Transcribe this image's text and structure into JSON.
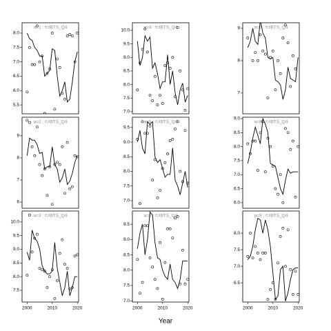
{
  "xlabel": "Year",
  "chart_data": [
    {
      "type": "line",
      "title": "a=1 : f=IBTS_Q4",
      "x": [
        2000,
        2001,
        2002,
        2003,
        2004,
        2005,
        2006,
        2007,
        2008,
        2009,
        2010,
        2011,
        2012,
        2013,
        2014,
        2015,
        2016,
        2017,
        2018,
        2019,
        2020
      ],
      "xlim": [
        1998,
        2020.5
      ],
      "ylim": [
        5.19,
        8.36
      ],
      "yticks": [
        5.5,
        {
          "value": 6,
          "label": "6.0"
        },
        6.5,
        {
          "value": 7,
          "label": "7.0"
        },
        7.5,
        {
          "value": 8,
          "label": "8.0"
        }
      ],
      "series": [
        {
          "style": "points",
          "color": "#000000",
          "values": [
            5.95,
            7.5,
            6.9,
            6.9,
            8.25,
            7.0,
            7.2,
            5.2,
            6.6,
            6.75,
            8.0,
            5.35,
            7.1,
            6.8,
            5.9,
            5.7,
            7.9,
            7.95,
            7.9,
            7.0,
            8.0
          ]
        },
        {
          "style": "line",
          "color": "#000000",
          "values": [
            8.0,
            7.8,
            7.75,
            7.5,
            7.4,
            7.2,
            7.2,
            6.5,
            6.6,
            6.7,
            7.45,
            7.4,
            6.5,
            5.8,
            6.0,
            6.3,
            5.6,
            5.7,
            6.3,
            7.0,
            7.35
          ]
        }
      ]
    },
    {
      "type": "line",
      "title": "a=4 : f=IBTS_Q4",
      "x": [
        2000,
        2001,
        2002,
        2003,
        2004,
        2005,
        2006,
        2007,
        2008,
        2009,
        2010,
        2011,
        2012,
        2013,
        2014,
        2015,
        2016,
        2017,
        2018,
        2019,
        2020
      ],
      "xlim": [
        1998,
        2020.5
      ],
      "ylim": [
        6.92,
        10.28
      ],
      "yticks": [
        {
          "value": 7,
          "label": "7.0"
        },
        7.5,
        {
          "value": 8,
          "label": "8.0"
        },
        8.5,
        {
          "value": 9,
          "label": "9.0"
        },
        9.5,
        {
          "value": 10,
          "label": "10.0"
        }
      ],
      "series": [
        {
          "style": "points",
          "color": "#000000",
          "values": [
            7.8,
            8.8,
            9.3,
            10.05,
            9.2,
            7.6,
            7.4,
            8.3,
            7.25,
            7.6,
            7.3,
            8.7,
            8.8,
            8.6,
            9.0,
            7.55,
            10.1,
            8.5,
            7.8,
            7.05,
            7.85
          ]
        },
        {
          "style": "line",
          "color": "#000000",
          "values": [
            9.6,
            8.7,
            9.0,
            9.8,
            9.6,
            9.75,
            8.6,
            8.8,
            8.4,
            7.85,
            8.1,
            8.1,
            9.1,
            8.0,
            8.5,
            7.7,
            7.25,
            7.8,
            8.05,
            7.35,
            7.6
          ]
        }
      ]
    },
    {
      "type": "line",
      "title": "a=7 : f=IBTS_Q4",
      "x": [
        2000,
        2001,
        2002,
        2003,
        2004,
        2005,
        2006,
        2007,
        2008,
        2009,
        2010,
        2011,
        2012,
        2013,
        2014,
        2015,
        2016,
        2017,
        2018,
        2019,
        2020
      ],
      "xlim": [
        1998,
        2020.5
      ],
      "ylim": [
        6.36,
        9.17
      ],
      "yticks": [
        7,
        8,
        9
      ],
      "series": [
        {
          "style": "points",
          "color": "#000000",
          "values": [
            8.7,
            9.2,
            8.0,
            8.25,
            8.0,
            8.8,
            8.3,
            8.2,
            6.85,
            8.1,
            8.3,
            7.1,
            8.0,
            7.6,
            8.7,
            9.1,
            8.55,
            7.2,
            8.15,
            7.75,
            9.3
          ]
        },
        {
          "style": "line",
          "color": "#000000",
          "values": [
            8.4,
            8.6,
            9.0,
            8.6,
            8.5,
            9.25,
            8.85,
            8.7,
            8.1,
            8.05,
            8.1,
            7.4,
            7.35,
            7.25,
            6.8,
            7.1,
            7.8,
            7.45,
            7.4,
            7.35,
            8.1
          ]
        }
      ]
    },
    {
      "type": "line",
      "title": "a=2 : f=IBTS_Q4",
      "x": [
        2000,
        2001,
        2002,
        2003,
        2004,
        2005,
        2006,
        2007,
        2008,
        2009,
        2010,
        2011,
        2012,
        2013,
        2014,
        2015,
        2016,
        2017,
        2018,
        2019,
        2020
      ],
      "xlim": [
        1998,
        2020.5
      ],
      "ylim": [
        5.72,
        9.84
      ],
      "yticks": [
        6,
        7,
        8,
        9
      ],
      "series": [
        {
          "style": "points",
          "color": "#000000",
          "values": [
            9.7,
            9.6,
            8.5,
            8.1,
            9.4,
            7.7,
            7.2,
            7.5,
            6.3,
            7.6,
            5.9,
            7.7,
            7.8,
            7.7,
            8.5,
            6.4,
            8.7,
            6.6,
            6.7,
            8.1,
            8.05
          ]
        },
        {
          "style": "line",
          "color": "#000000",
          "values": [
            8.1,
            8.9,
            8.8,
            8.8,
            8.6,
            8.2,
            8.25,
            7.5,
            7.6,
            7.6,
            8.5,
            7.7,
            7.5,
            6.9,
            7.1,
            7.5,
            6.8,
            6.95,
            7.3,
            7.8,
            8.1
          ]
        }
      ]
    },
    {
      "type": "line",
      "title": "a=5 : f=IBTS_Q4",
      "x": [
        2000,
        2001,
        2002,
        2003,
        2004,
        2005,
        2006,
        2007,
        2008,
        2009,
        2010,
        2011,
        2012,
        2013,
        2014,
        2015,
        2016,
        2017,
        2018,
        2019,
        2020
      ],
      "xlim": [
        1998,
        2020.5
      ],
      "ylim": [
        6.74,
        9.85
      ],
      "yticks": [
        {
          "value": 7,
          "label": "7.0"
        },
        7.5,
        {
          "value": 8,
          "label": "8.0"
        },
        8.5,
        {
          "value": 9,
          "label": "9.0"
        },
        9.5
      ],
      "series": [
        {
          "style": "points",
          "color": "#000000",
          "values": [
            9.1,
            6.9,
            9.7,
            9.3,
            9.3,
            9.55,
            7.7,
            8.4,
            7.1,
            7.35,
            8.1,
            8.3,
            8.6,
            9.05,
            9.1,
            9.45,
            9.7,
            8.0,
            7.65,
            9.4,
            7.6
          ]
        },
        {
          "style": "line",
          "color": "#000000",
          "values": [
            9.0,
            9.4,
            8.8,
            8.6,
            9.7,
            9.6,
            9.7,
            8.5,
            8.3,
            8.4,
            8.1,
            7.8,
            7.9,
            7.9,
            8.8,
            7.7,
            7.5,
            7.2,
            7.6,
            8.0,
            7.45
          ]
        }
      ]
    },
    {
      "type": "line",
      "title": "a=8 : f=IBTS_Q4",
      "x": [
        2000,
        2001,
        2002,
        2003,
        2004,
        2005,
        2006,
        2007,
        2008,
        2009,
        2010,
        2011,
        2012,
        2013,
        2014,
        2015,
        2016,
        2017,
        2018,
        2019,
        2020
      ],
      "xlim": [
        1998,
        2020.5
      ],
      "ylim": [
        5.8,
        9.05
      ],
      "yticks": [
        {
          "value": 6,
          "label": "6.0"
        },
        6.5,
        {
          "value": 7,
          "label": "7.0"
        },
        7.5,
        {
          "value": 8,
          "label": "8.0"
        },
        8.5,
        {
          "value": 9,
          "label": "9.0"
        }
      ],
      "series": [
        {
          "style": "points",
          "color": "#000000",
          "values": [
            8.1,
            7.75,
            8.2,
            8.2,
            7.15,
            8.5,
            8.9,
            7.1,
            8.3,
            8.0,
            7.3,
            6.5,
            6.3,
            7.0,
            6.0,
            8.65,
            8.5,
            7.9,
            8.2,
            6.2,
            8.0
          ]
        },
        {
          "style": "line",
          "color": "#000000",
          "values": [
            7.4,
            7.8,
            8.3,
            8.7,
            8.4,
            8.1,
            9.0,
            8.8,
            8.5,
            7.4,
            7.35,
            7.3,
            6.9,
            6.5,
            6.3,
            6.8,
            7.2,
            7.05,
            7.1,
            7.1,
            7.1
          ]
        }
      ]
    },
    {
      "type": "line",
      "title": "a=3 : f=IBTS_Q4",
      "x": [
        2000,
        2001,
        2002,
        2003,
        2004,
        2005,
        2006,
        2007,
        2008,
        2009,
        2010,
        2011,
        2012,
        2013,
        2014,
        2015,
        2016,
        2017,
        2018,
        2019,
        2020
      ],
      "xlim": [
        1998,
        2020.5
      ],
      "ylim": [
        7.07,
        10.4
      ],
      "xticks": [
        2000,
        2010,
        2020
      ],
      "yticks": [
        7.5,
        {
          "value": 8,
          "label": "8.0"
        },
        8.5,
        {
          "value": 9,
          "label": "9.0"
        },
        9.5,
        {
          "value": 10,
          "label": "10.0"
        }
      ],
      "series": [
        {
          "style": "points",
          "color": "#000000",
          "values": [
            8.05,
            10.25,
            8.9,
            9.4,
            9.55,
            8.3,
            8.25,
            8.2,
            7.6,
            8.0,
            8.25,
            7.2,
            7.85,
            8.85,
            9.35,
            8.45,
            8.3,
            7.55,
            7.6,
            8.75,
            8.8
          ]
        },
        {
          "style": "line",
          "color": "#000000",
          "values": [
            8.9,
            8.6,
            9.7,
            9.4,
            9.3,
            9.0,
            8.4,
            8.2,
            8.1,
            8.1,
            8.2,
            9.25,
            8.3,
            7.8,
            7.3,
            7.6,
            8.2,
            7.3,
            7.6,
            8.0,
            8.0
          ]
        }
      ]
    },
    {
      "type": "line",
      "title": "a=6 : f=IBTS_Q4",
      "x": [
        2000,
        2001,
        2002,
        2003,
        2004,
        2005,
        2006,
        2007,
        2008,
        2009,
        2010,
        2011,
        2012,
        2013,
        2014,
        2015,
        2016,
        2017,
        2018,
        2019,
        2020
      ],
      "xlim": [
        1998,
        2020.5
      ],
      "ylim": [
        6.96,
        9.93
      ],
      "xticks": [
        2000,
        2010,
        2020
      ],
      "yticks": [
        {
          "value": 7,
          "label": "7.0"
        },
        7.5,
        {
          "value": 8,
          "label": "8.0"
        },
        8.5,
        {
          "value": 9,
          "label": "9.0"
        },
        9.5
      ],
      "series": [
        {
          "style": "points",
          "color": "#000000",
          "values": [
            8.35,
            7.25,
            7.6,
            9.45,
            9.45,
            8.4,
            8.1,
            7.7,
            7.4,
            8.9,
            7.05,
            8.25,
            9.35,
            9.35,
            9.05,
            9.7,
            9.75,
            7.55,
            8.65,
            7.55,
            7.7
          ]
        },
        {
          "style": "line",
          "color": "#000000",
          "values": [
            8.7,
            9.2,
            9.5,
            8.5,
            9.0,
            9.9,
            9.8,
            8.9,
            8.4,
            8.35,
            8.0,
            7.8,
            7.7,
            8.2,
            7.7,
            7.6,
            7.4,
            7.7,
            8.3,
            8.3,
            8.3
          ]
        }
      ]
    },
    {
      "type": "line",
      "title": "a=9 : f=IBTS_Q4",
      "x": [
        2000,
        2001,
        2002,
        2003,
        2004,
        2005,
        2006,
        2007,
        2008,
        2009,
        2010,
        2011,
        2012,
        2013,
        2014,
        2015,
        2016,
        2017,
        2018,
        2019,
        2020
      ],
      "xlim": [
        1998,
        2020.5
      ],
      "ylim": [
        5.92,
        8.67
      ],
      "xticks": [
        2000,
        2010,
        2020
      ],
      "yticks": [
        6.5,
        {
          "value": 7,
          "label": "7.0"
        },
        7.5,
        {
          "value": 8,
          "label": "8.0"
        }
      ],
      "series": [
        {
          "style": "points",
          "color": "#000000",
          "values": [
            7.3,
            8.0,
            7.25,
            7.6,
            7.4,
            7.2,
            7.4,
            7.4,
            6.0,
            6.3,
            6.5,
            6.0,
            7.1,
            7.9,
            8.15,
            7.0,
            8.1,
            6.9,
            6.15,
            6.85,
            6.15
          ]
        },
        {
          "style": "line",
          "color": "#000000",
          "values": [
            7.2,
            7.3,
            7.6,
            8.1,
            8.45,
            8.4,
            8.0,
            8.4,
            8.1,
            7.6,
            6.8,
            6.0,
            6.1,
            6.9,
            7.0,
            5.95,
            6.2,
            6.6,
            6.9,
            6.95,
            6.95
          ]
        }
      ]
    }
  ]
}
